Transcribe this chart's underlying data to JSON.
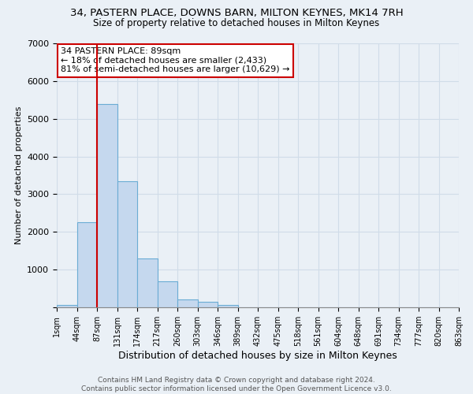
{
  "title_line1": "34, PASTERN PLACE, DOWNS BARN, MILTON KEYNES, MK14 7RH",
  "title_line2": "Size of property relative to detached houses in Milton Keynes",
  "xlabel": "Distribution of detached houses by size in Milton Keynes",
  "ylabel": "Number of detached properties",
  "footer_line1": "Contains HM Land Registry data © Crown copyright and database right 2024.",
  "footer_line2": "Contains public sector information licensed under the Open Government Licence v3.0.",
  "bin_labels": [
    "1sqm",
    "44sqm",
    "87sqm",
    "131sqm",
    "174sqm",
    "217sqm",
    "260sqm",
    "303sqm",
    "346sqm",
    "389sqm",
    "432sqm",
    "475sqm",
    "518sqm",
    "561sqm",
    "604sqm",
    "648sqm",
    "691sqm",
    "734sqm",
    "777sqm",
    "820sqm",
    "863sqm"
  ],
  "bar_values": [
    70,
    2250,
    5400,
    3350,
    1300,
    700,
    200,
    150,
    70,
    10,
    0,
    0,
    0,
    0,
    0,
    0,
    0,
    0,
    0,
    0
  ],
  "bar_color": "#c5d8ee",
  "bar_edge_color": "#6aacd4",
  "grid_color": "#d0dce8",
  "property_line_label": "34 PASTERN PLACE: 89sqm",
  "annotation_line1": "← 18% of detached houses are smaller (2,433)",
  "annotation_line2": "81% of semi-detached houses are larger (10,629) →",
  "annotation_box_color": "#ffffff",
  "annotation_box_edge_color": "#cc0000",
  "ylim": [
    0,
    7000
  ],
  "yticks": [
    0,
    1000,
    2000,
    3000,
    4000,
    5000,
    6000,
    7000
  ],
  "vline_color": "#cc0000",
  "background_color": "#eaf0f6",
  "vline_x_index": 2.0
}
